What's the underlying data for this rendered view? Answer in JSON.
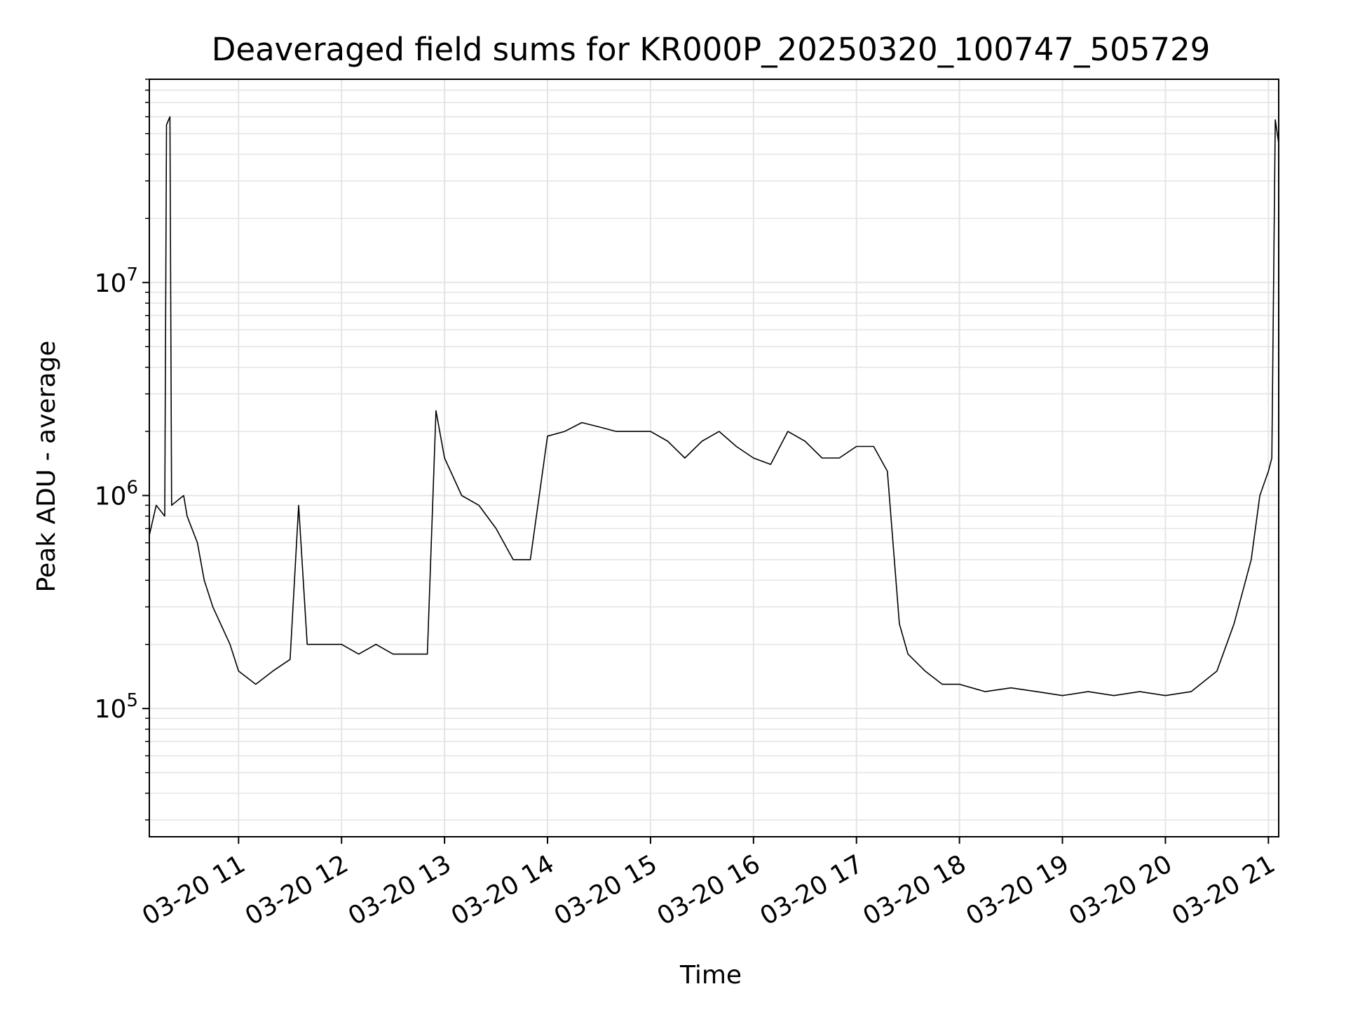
{
  "chart_data": {
    "type": "line",
    "title": "Deaveraged field sums for KR000P_20250320_100747_505729",
    "xlabel": "Time",
    "ylabel": "Peak ADU - average",
    "yscale": "log",
    "ylim": [
      25000,
      90000000
    ],
    "grid": true,
    "line_color": "#000000",
    "grid_color": "#e5e5e5",
    "x_range": [
      "03-20 10:08",
      "03-20 21:06"
    ],
    "x_ticks": [
      "03-20 11",
      "03-20 12",
      "03-20 13",
      "03-20 14",
      "03-20 15",
      "03-20 16",
      "03-20 17",
      "03-20 18",
      "03-20 19",
      "03-20 20",
      "03-20 21"
    ],
    "y_ticks": [
      {
        "value": 100000,
        "base": "10",
        "exp": "5"
      },
      {
        "value": 1000000,
        "base": "10",
        "exp": "6"
      },
      {
        "value": 10000000,
        "base": "10",
        "exp": "7"
      }
    ],
    "series": [
      {
        "x": [
          "03-20 10:08",
          "03-20 10:12",
          "03-20 10:17",
          "03-20 10:18",
          "03-20 10:20",
          "03-20 10:21",
          "03-20 10:28",
          "03-20 10:30",
          "03-20 10:36",
          "03-20 10:40",
          "03-20 10:45",
          "03-20 10:55",
          "03-20 11:00",
          "03-20 11:10",
          "03-20 11:20",
          "03-20 11:30",
          "03-20 11:35",
          "03-20 11:40",
          "03-20 11:50",
          "03-20 12:00",
          "03-20 12:10",
          "03-20 12:20",
          "03-20 12:30",
          "03-20 12:40",
          "03-20 12:50",
          "03-20 12:55",
          "03-20 13:00",
          "03-20 13:10",
          "03-20 13:20",
          "03-20 13:30",
          "03-20 13:40",
          "03-20 13:50",
          "03-20 14:00",
          "03-20 14:10",
          "03-20 14:20",
          "03-20 14:30",
          "03-20 14:40",
          "03-20 14:50",
          "03-20 15:00",
          "03-20 15:10",
          "03-20 15:20",
          "03-20 15:30",
          "03-20 15:40",
          "03-20 15:50",
          "03-20 16:00",
          "03-20 16:10",
          "03-20 16:20",
          "03-20 16:30",
          "03-20 16:40",
          "03-20 16:50",
          "03-20 17:00",
          "03-20 17:10",
          "03-20 17:18",
          "03-20 17:25",
          "03-20 17:30",
          "03-20 17:40",
          "03-20 17:50",
          "03-20 18:00",
          "03-20 18:15",
          "03-20 18:30",
          "03-20 18:45",
          "03-20 19:00",
          "03-20 19:15",
          "03-20 19:30",
          "03-20 19:45",
          "03-20 20:00",
          "03-20 20:15",
          "03-20 20:30",
          "03-20 20:40",
          "03-20 20:50",
          "03-20 20:55",
          "03-20 21:00",
          "03-20 21:02",
          "03-20 21:04",
          "03-20 21:06"
        ],
        "y": [
          650000,
          900000,
          800000,
          55000000,
          60000000,
          900000,
          1000000,
          800000,
          600000,
          400000,
          300000,
          200000,
          150000,
          130000,
          150000,
          170000,
          900000,
          200000,
          200000,
          200000,
          180000,
          200000,
          180000,
          180000,
          180000,
          2500000,
          1500000,
          1000000,
          900000,
          700000,
          500000,
          500000,
          1900000,
          2000000,
          2200000,
          2100000,
          2000000,
          2000000,
          2000000,
          1800000,
          1500000,
          1800000,
          2000000,
          1700000,
          1500000,
          1400000,
          2000000,
          1800000,
          1500000,
          1500000,
          1700000,
          1700000,
          1300000,
          250000,
          180000,
          150000,
          130000,
          130000,
          120000,
          125000,
          120000,
          115000,
          120000,
          115000,
          120000,
          115000,
          120000,
          150000,
          250000,
          500000,
          1000000,
          1300000,
          1500000,
          58000000,
          45000000
        ]
      }
    ]
  }
}
